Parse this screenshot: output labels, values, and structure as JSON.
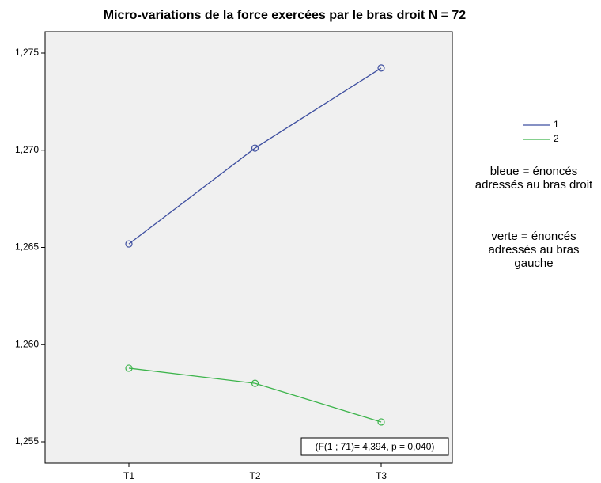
{
  "chart_data": {
    "type": "line",
    "title": "Micro-variations de la force exercées par le bras droit  N = 72",
    "categories": [
      "T1",
      "T2",
      "T3"
    ],
    "series": [
      {
        "name": "1",
        "color": "#3e4fa0",
        "values": [
          1.26518,
          1.27011,
          1.27423
        ]
      },
      {
        "name": "2",
        "color": "#3cb44b",
        "values": [
          1.25879,
          1.25801,
          1.25602
        ]
      }
    ],
    "ylim": [
      1.2539,
      1.2761
    ],
    "yticks": [
      {
        "value": 1.255,
        "label": "1,255"
      },
      {
        "value": 1.26,
        "label": "1,260"
      },
      {
        "value": 1.265,
        "label": "1,265"
      },
      {
        "value": 1.27,
        "label": "1,270"
      },
      {
        "value": 1.275,
        "label": "1,275"
      }
    ],
    "annotation": "(F(1 ; 71)= 4,394,  p = 0,040)",
    "notes": [
      "bleue = énoncés adressés au bras droit",
      "verte = énoncés adressés au bras gauche"
    ]
  }
}
